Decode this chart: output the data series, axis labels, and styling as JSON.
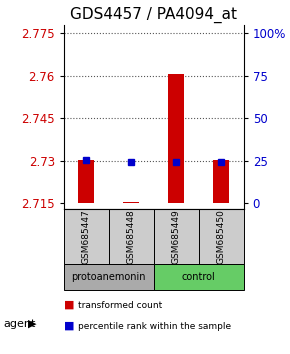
{
  "title": "GDS4457 / PA4094_at",
  "samples": [
    "GSM685447",
    "GSM685448",
    "GSM685449",
    "GSM685450"
  ],
  "red_values": [
    2.7305,
    2.7155,
    2.7605,
    2.7305
  ],
  "blue_values": [
    2.7305,
    2.7295,
    2.7295,
    2.7295
  ],
  "baseline": 2.715,
  "ylim_left": [
    2.713,
    2.778
  ],
  "yticks_left": [
    2.715,
    2.73,
    2.745,
    2.76,
    2.775
  ],
  "yticks_right": [
    0,
    25,
    50,
    75,
    100
  ],
  "ylim_right": [
    0,
    105
  ],
  "groups": [
    {
      "label": "protoanemonin",
      "color": "#aaaaaa",
      "samples": [
        0,
        1
      ]
    },
    {
      "label": "control",
      "color": "#66cc66",
      "samples": [
        2,
        3
      ]
    }
  ],
  "group_label_text": "agent",
  "bar_color": "#cc0000",
  "dot_color": "#0000cc",
  "left_axis_color": "#cc0000",
  "right_axis_color": "#0000cc",
  "title_fontsize": 11,
  "tick_fontsize": 8.5,
  "legend_red_label": "transformed count",
  "legend_blue_label": "percentile rank within the sample",
  "dotted_line_color": "#555555",
  "bar_width": 0.35,
  "sample_box_color": "#cccccc"
}
